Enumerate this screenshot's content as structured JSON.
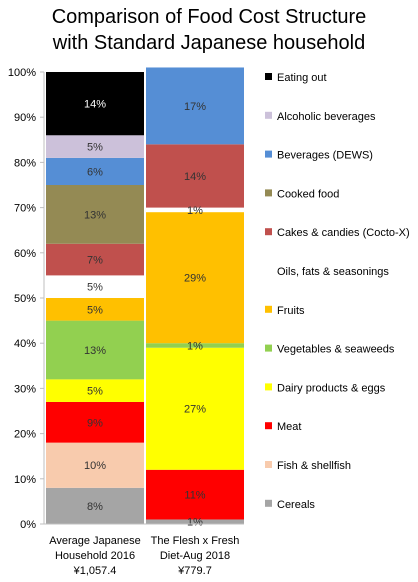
{
  "chart_data": {
    "type": "bar",
    "stacked": true,
    "percent": true,
    "title": "Comparison of Food Cost Structure with Standard Japanese household",
    "title_lines": [
      "Comparison of Food Cost Structure",
      "with Standard Japanese household"
    ],
    "ylim": [
      0,
      100
    ],
    "yticks": [
      "0%",
      "10%",
      "20%",
      "30%",
      "40%",
      "50%",
      "60%",
      "70%",
      "80%",
      "90%",
      "100%"
    ],
    "grid": false,
    "legend_position": "right",
    "categories": [
      {
        "lines": [
          "Average Japanese",
          "Household 2016",
          "¥1,057.4"
        ]
      },
      {
        "lines": [
          "The Flesh x Fresh",
          "Diet-Aug 2018",
          "¥779.7"
        ]
      }
    ],
    "series": [
      {
        "name": "Cereals",
        "color": "#a5a5a5",
        "values": [
          8,
          1
        ],
        "labels": [
          "8%",
          "1%"
        ]
      },
      {
        "name": "Fish & shellfish",
        "color": "#f8cbad",
        "values": [
          10,
          0
        ],
        "labels": [
          "10%",
          ""
        ]
      },
      {
        "name": "Meat",
        "color": "#ff0000",
        "values": [
          9,
          11
        ],
        "labels": [
          "9%",
          "11%"
        ]
      },
      {
        "name": "Dairy products & eggs",
        "color": "#ffff00",
        "values": [
          5,
          27
        ],
        "labels": [
          "5%",
          "27%"
        ]
      },
      {
        "name": "Vegetables & seaweeds",
        "color": "#92d050",
        "values": [
          13,
          1
        ],
        "labels": [
          "13%",
          "1%"
        ]
      },
      {
        "name": "Fruits",
        "color": "#ffc000",
        "values": [
          5,
          29
        ],
        "labels": [
          "5%",
          "29%"
        ]
      },
      {
        "name": "Oils, fats & seasonings",
        "color": "#ffffff",
        "values": [
          5,
          1
        ],
        "labels": [
          "5%",
          "1%"
        ]
      },
      {
        "name": "Cakes & candies (Cocto-X)",
        "color": "#c0504d",
        "values": [
          7,
          14
        ],
        "labels": [
          "7%",
          "14%"
        ]
      },
      {
        "name": "Cooked food",
        "color": "#948a54",
        "values": [
          13,
          0
        ],
        "labels": [
          "13%",
          ""
        ]
      },
      {
        "name": "Beverages (DEWS)",
        "color": "#558ed5",
        "values": [
          6,
          17
        ],
        "labels": [
          "6%",
          "17%"
        ]
      },
      {
        "name": "Alcoholic beverages",
        "color": "#ccc1da",
        "values": [
          5,
          0
        ],
        "labels": [
          "5%",
          ""
        ]
      },
      {
        "name": "Eating out",
        "color": "#000000",
        "values": [
          14,
          0
        ],
        "labels": [
          "14%",
          ""
        ]
      }
    ],
    "label_colors": {
      "light": "#333333",
      "on_dark": "#ffffff"
    }
  }
}
